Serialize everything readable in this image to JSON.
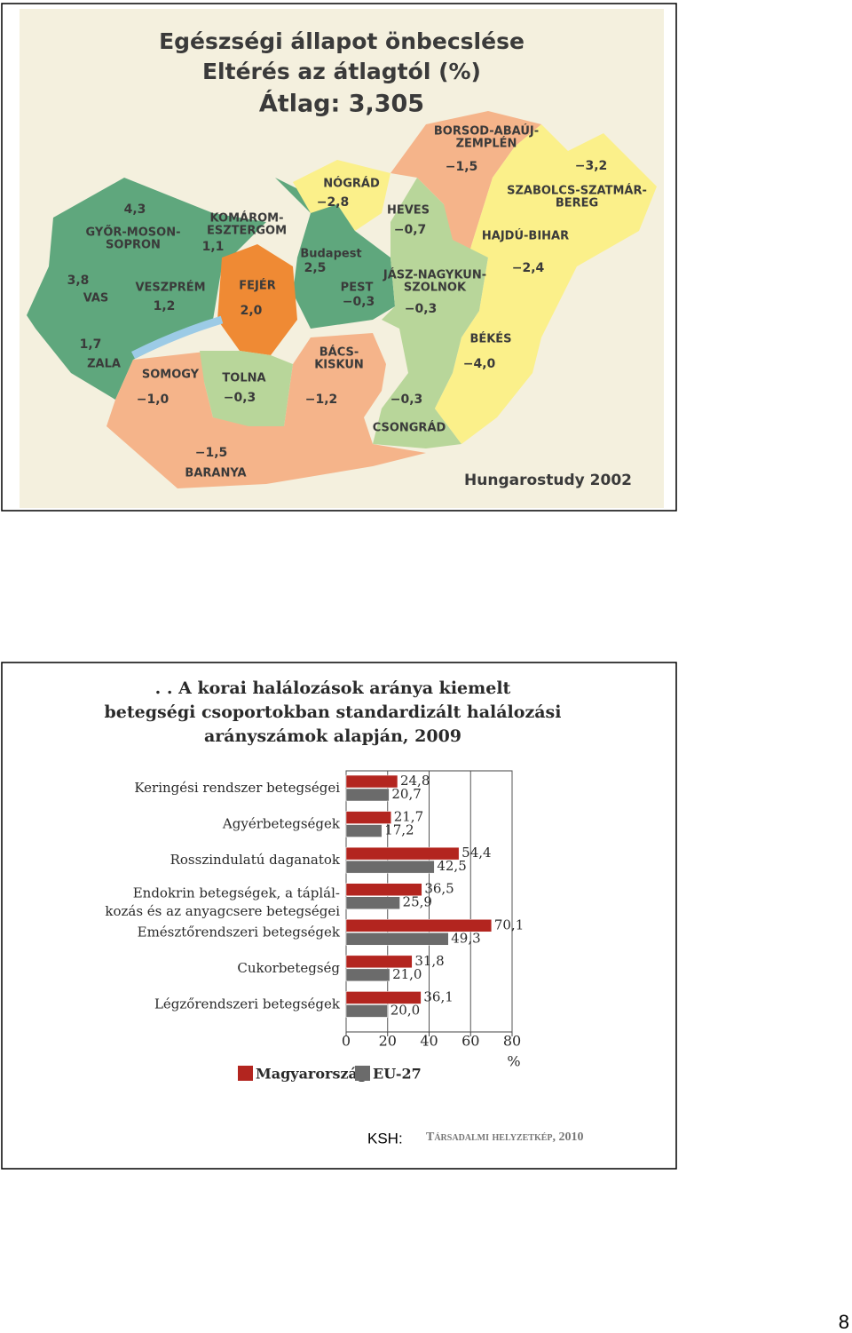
{
  "map": {
    "title": [
      "Egészségi állapot önbecslése",
      "Eltérés az átlagtól (%)",
      "Átlag: 3,305"
    ],
    "regions": [
      {
        "name": [
          "GYŐR-MOSON-",
          "SOPRON"
        ],
        "value": "4,3"
      },
      {
        "name": [
          "KOMÁROM-",
          "ESZTERGOM"
        ],
        "value": "1,1"
      },
      {
        "name": [
          "VAS"
        ],
        "value": "3,8"
      },
      {
        "name": [
          "VESZPRÉM"
        ],
        "value": "1,2"
      },
      {
        "name": [
          "FEJÉR"
        ],
        "value": "2,0"
      },
      {
        "name": [
          "ZALA"
        ],
        "value": "1,7"
      },
      {
        "name": [
          "SOMOGY"
        ],
        "value": "−1,0"
      },
      {
        "name": [
          "TOLNA"
        ],
        "value": "−0,3"
      },
      {
        "name": [
          "BARANYA"
        ],
        "value": "−1,5"
      },
      {
        "name": [
          "BÁCS-",
          "KISKUN"
        ],
        "value": "−1,2"
      },
      {
        "name": [
          "CSONGRÁD"
        ],
        "value": "−0,3"
      },
      {
        "name": [
          "Budapest"
        ],
        "value": "2,5"
      },
      {
        "name": [
          "PEST"
        ],
        "value": "−0,3"
      },
      {
        "name": [
          "NÓGRÁD"
        ],
        "value": "−2,8"
      },
      {
        "name": [
          "HEVES"
        ],
        "value": "−0,7"
      },
      {
        "name": [
          "JÁSZ-NAGYKUN-",
          "SZOLNOK"
        ],
        "value": "−0,3"
      },
      {
        "name": [
          "BORSOD-ABAÚJ-",
          "ZEMPLÉN"
        ],
        "value": "−1,5"
      },
      {
        "name": [
          "SZABOLCS-SZATMÁR-",
          "BEREG"
        ],
        "value": "−3,2"
      },
      {
        "name": [
          "HAJDÚ-BIHAR"
        ],
        "value": "−2,4"
      },
      {
        "name": [
          "BÉKÉS"
        ],
        "value": "−4,0"
      }
    ],
    "caption": "Hungarostudy 2002"
  },
  "chart_data": {
    "type": "bar",
    "orientation": "horizontal",
    "title": [
      ". . A korai halálozások aránya kiemelt",
      "betegségi csoportokban standardizált halálozási",
      "arányszámok alapján, 2009"
    ],
    "categories": [
      "Keringési rendszer betegségei",
      "Agyérbetegségek",
      "Rosszindulatú daganatok",
      "Endokrin betegségek, a táplál-\nkozás és az anyagcsere betegségei",
      "Emésztőrendszeri betegségek",
      "Cukorbetegség",
      "Légzőrendszeri betegségek"
    ],
    "series": [
      {
        "name": "Magyarország",
        "color": "#b3251f",
        "values": [
          24.8,
          21.7,
          54.4,
          36.5,
          70.1,
          31.8,
          36.1
        ],
        "value_labels": [
          "24,8",
          "21,7",
          "54,4",
          "36,5",
          "70,1",
          "31,8",
          "36,1"
        ]
      },
      {
        "name": "EU-27",
        "color": "#6b6b6b",
        "values": [
          20.7,
          17.2,
          42.5,
          25.9,
          49.3,
          21.0,
          20.0
        ],
        "value_labels": [
          "20,7",
          "17,2",
          "42,5",
          "25,9",
          "49,3",
          "21,0",
          "20,0"
        ]
      }
    ],
    "xlim": [
      0,
      80
    ],
    "xticks": [
      0,
      20,
      40,
      60,
      80
    ],
    "x_label": "%",
    "grid": true
  },
  "source": {
    "label": "KSH:",
    "publication": "Társadalmi helyzetkép, 2010"
  },
  "page_number": "8"
}
